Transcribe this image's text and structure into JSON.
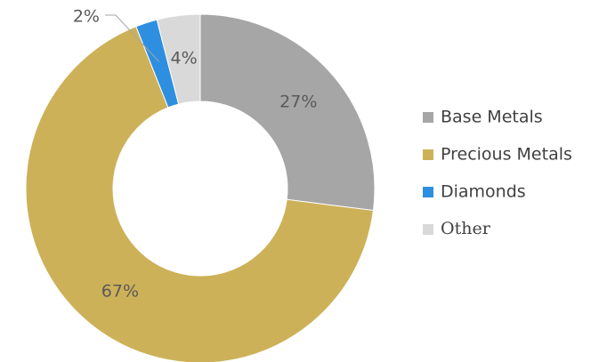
{
  "chart_data": {
    "type": "donut",
    "categories": [
      "Base Metals",
      "Precious Metals",
      "Diamonds",
      "Other"
    ],
    "values": [
      27,
      67,
      2,
      4
    ],
    "value_labels": [
      "27%",
      "67%",
      "2%",
      "4%"
    ],
    "colors": [
      "#a6a6a6",
      "#cdb158",
      "#2e8fe0",
      "#d9d9d9"
    ],
    "legend": "right"
  }
}
